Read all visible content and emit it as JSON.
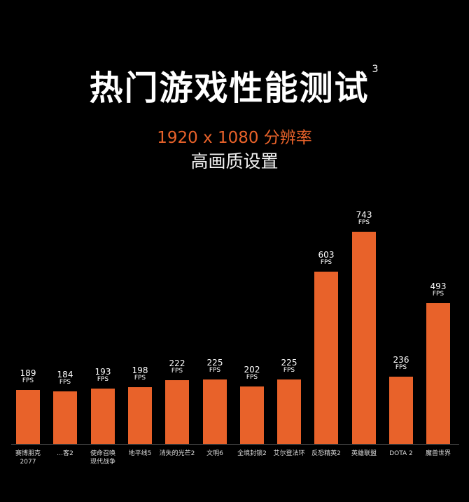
{
  "header": {
    "title": "热门游戏性能测试",
    "footnote": "3",
    "resolution": "1920 x 1080 分辨率",
    "quality": "高画质设置"
  },
  "unit": "FPS",
  "colors": {
    "bar": "#E8622A",
    "background": "#000000",
    "accent": "#E8622A"
  },
  "chart_data": {
    "type": "bar",
    "title": "热门游戏性能测试",
    "subtitle": "1920 x 1080 分辨率 高画质设置",
    "xlabel": "",
    "ylabel": "FPS",
    "categories": [
      "赛博朋克2077",
      "…客2",
      "使命召唤现代战争",
      "地平线5",
      "消失的光芒2",
      "文明6",
      "全境封锁2",
      "艾尔登法环",
      "反恐精英2",
      "英雄联盟",
      "DOTA 2",
      "魔兽世界"
    ],
    "values": [
      189,
      184,
      193,
      198,
      222,
      225,
      202,
      225,
      603,
      743,
      236,
      493
    ],
    "grid": false,
    "legend": null,
    "data_labels": true
  },
  "bars": [
    {
      "label_l1": "赛博朋克",
      "label_l2": "2077",
      "value": "189"
    },
    {
      "label_l1": "…客2",
      "label_l2": "",
      "value": "184"
    },
    {
      "label_l1": "使命召唤",
      "label_l2": "现代战争",
      "value": "193"
    },
    {
      "label_l1": "地平线5",
      "label_l2": "",
      "value": "198"
    },
    {
      "label_l1": "消失的光芒2",
      "label_l2": "",
      "value": "222"
    },
    {
      "label_l1": "文明6",
      "label_l2": "",
      "value": "225"
    },
    {
      "label_l1": "全境封锁2",
      "label_l2": "",
      "value": "202"
    },
    {
      "label_l1": "艾尔登法环",
      "label_l2": "",
      "value": "225"
    },
    {
      "label_l1": "反恐精英2",
      "label_l2": "",
      "value": "603"
    },
    {
      "label_l1": "英雄联盟",
      "label_l2": "",
      "value": "743"
    },
    {
      "label_l1": "DOTA 2",
      "label_l2": "",
      "value": "236"
    },
    {
      "label_l1": "魔兽世界",
      "label_l2": "",
      "value": "493"
    }
  ]
}
